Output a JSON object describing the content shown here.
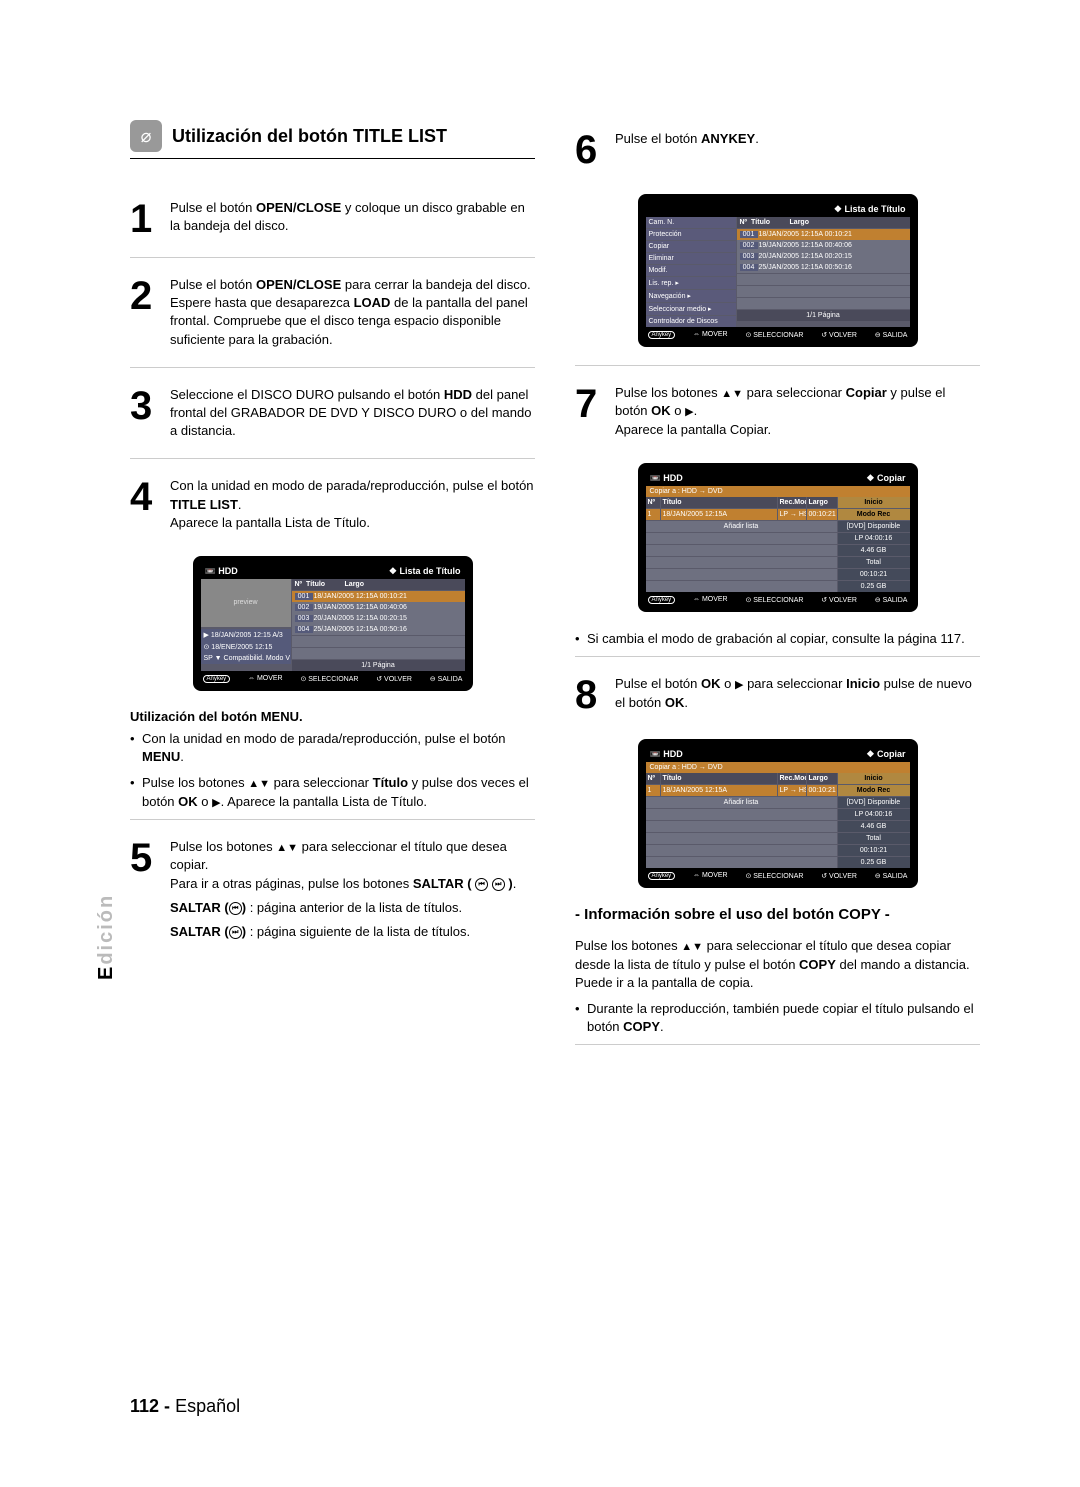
{
  "side_label_highlight": "E",
  "side_label_dim": "dición",
  "section_title": "Utilización del botón TITLE LIST",
  "steps_left": {
    "s1": "Pulse el botón <b>OPEN/CLOSE</b> y coloque un disco grabable en la bandeja del disco.",
    "s2": "Pulse el botón <b>OPEN/CLOSE</b> para cerrar la bandeja del disco. Espere hasta que desaparezca <b>LOAD</b> de la pantalla del panel frontal. Compruebe que el disco tenga espacio disponible suficiente para la grabación.",
    "s3": "Seleccione el DISCO DURO pulsando el botón <b>HDD</b> del panel frontal del GRABADOR DE DVD Y DISCO DURO o del mando a distancia.",
    "s4": "Con la unidad en modo de parada/reproducción, pulse el botón <b>TITLE LIST</b>.<br>Aparece la pantalla Lista de Título.",
    "menu_head": "Utilización del botón MENU.",
    "menu_b1": "Con la unidad en modo de parada/reproducción, pulse el botón <b>MENU</b>.",
    "menu_b2": "Pulse los botones <span class='arrow'>▲▼</span> para seleccionar <b>Título</b> y pulse dos veces el botón <b>OK</b> o <span class='arrow'>▶</span>. Aparece la pantalla Lista de Título.",
    "s5": "Pulse los botones <span class='arrow'>▲▼</span> para seleccionar el título que desea copiar.<br>Para ir a otras páginas, pulse los botones <b>SALTAR ( <span class='circ'>⏮</span> <span class='circ'>⏭</span> )</b>.",
    "saltar_a": "<b>SALTAR (<span class='circ'>⏮</span>)</b> : página anterior de la lista de títulos.",
    "saltar_b": "<b>SALTAR (<span class='circ'>⏭</span>)</b> : página siguiente de la lista de títulos."
  },
  "steps_right": {
    "s6": "Pulse el botón <b>ANYKEY</b>.",
    "s7": "Pulse los botones <span class='arrow'>▲▼</span> para seleccionar <b>Copiar</b> y pulse el botón <b>OK</b> o <span class='arrow'>▶</span>.<br>Aparece la pantalla Copiar.",
    "note7": "Si cambia el modo de grabación al copiar, consulte la página 117.",
    "s8": "Pulse el botón <b>OK</b> o <span class='arrow'>▶</span> para seleccionar <b>Inicio</b> pulse de nuevo el botón <b>OK</b>."
  },
  "info_title": "- Información sobre el uso del botón COPY -",
  "info_body": "Pulse los botones <span class='arrow'>▲▼</span> para seleccionar el título que desea copiar desde la lista de título y pulse el botón <b>COPY</b> del mando a distancia. Puede ir a la pantalla de copia.",
  "info_bullet": "Durante la reproducción, también puede copiar el título pulsando el botón <b>COPY</b>.",
  "osd1": {
    "title": "Lista de Título",
    "src": "HDD",
    "cols": [
      "Nº",
      "Título",
      "Largo"
    ],
    "rows": [
      {
        "n": "001",
        "t": "18/JAN/2005 12:15A",
        "d": "00:10:21",
        "hl": true
      },
      {
        "n": "002",
        "t": "19/JAN/2005 12:15A",
        "d": "00:40:06"
      },
      {
        "n": "003",
        "t": "20/JAN/2005 12:15A",
        "d": "00:20:15"
      },
      {
        "n": "004",
        "t": "25/JAN/2005 12:15A",
        "d": "00:50:16"
      }
    ],
    "meta": [
      "▶ 18/JAN/2005 12:15 A/3",
      "⊙ 18/ENE/2005 12:15",
      "SP ▼ Compatibilid. Modo V"
    ],
    "page": "1/1 Página",
    "foot": [
      "⇔ MOVER",
      "⊙ SELECCIONAR",
      "↺ VOLVER",
      "⊖ SALIDA"
    ]
  },
  "osd2": {
    "title": "Lista de Título",
    "menu": [
      "Cam. N.",
      "Protección",
      "Copiar",
      "Eliminar",
      "Modif.",
      "Lis. rep.",
      "Navegación",
      "Seleccionar medio",
      "Controlador de Discos"
    ],
    "cols": [
      "Nº",
      "Título",
      "Largo"
    ],
    "rows": [
      {
        "n": "001",
        "t": "18/JAN/2005 12:15A",
        "d": "00:10:21",
        "hl": true
      },
      {
        "n": "002",
        "t": "19/JAN/2005 12:15A",
        "d": "00:40:06"
      },
      {
        "n": "003",
        "t": "20/JAN/2005 12:15A",
        "d": "00:20:15"
      },
      {
        "n": "004",
        "t": "25/JAN/2005 12:15A",
        "d": "00:50:16"
      }
    ],
    "page": "1/1 Página",
    "foot": [
      "⇔ MOVER",
      "⊙ SELECCIONAR",
      "↺ VOLVER",
      "⊖ SALIDA"
    ]
  },
  "osd3": {
    "title": "Copiar",
    "src": "HDD",
    "direction": "Copiar a : HDD → DVD",
    "cols": [
      "Nº",
      "Título",
      "Rec.Mode",
      "Largo"
    ],
    "row": {
      "n": "1",
      "t": "18/JAN/2005 12:15A",
      "m": "LP → HS",
      "d": "00:10:21"
    },
    "add": "Añadir lista",
    "side": [
      "Inicio",
      "Modo Rec",
      "[DVD] Disponible",
      "LP   04:00:16",
      "4.46 GB",
      "Total",
      "00:10:21",
      "0.25 GB"
    ],
    "foot": [
      "⇔ MOVER",
      "⊙ SELECCIONAR",
      "↺ VOLVER",
      "⊖ SALIDA"
    ]
  },
  "page_number": "112 -",
  "page_lang": "Español"
}
